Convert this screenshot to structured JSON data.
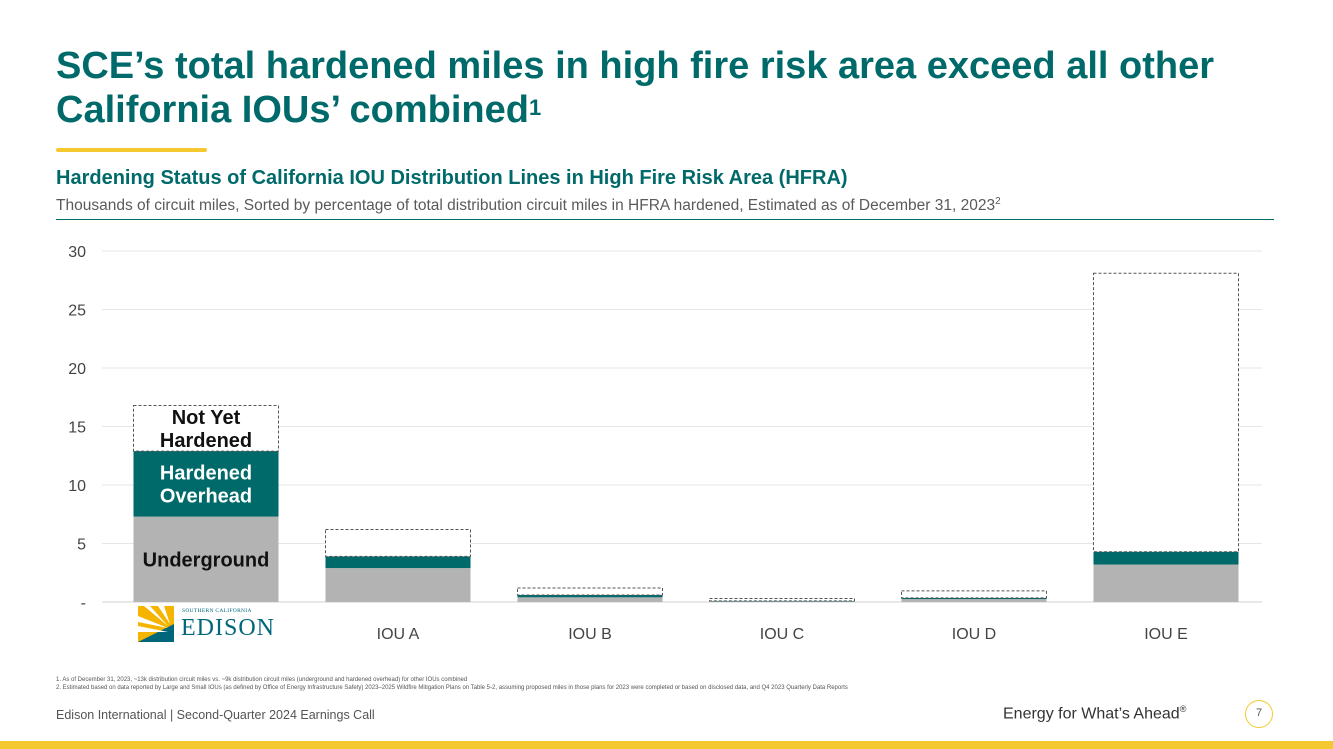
{
  "slide": {
    "title_main": "SCE’s total hardened miles in high fire risk area exceed all other California IOUs’ combined",
    "title_sup": "1",
    "chart_title": "Hardening Status of California IOU Distribution Lines in High Fire Risk Area (HFRA)",
    "chart_subtitle": "Thousands of circuit miles, Sorted by percentage of total distribution circuit miles in HFRA hardened, Estimated as of December 31, 2023",
    "chart_subtitle_sup": "2",
    "footnote_1": "1.  As of December 31, 2023, ~13k distribution circuit miles vs. ~9k distribution circuit miles (underground and hardened overhead) for other IOUs combined",
    "footnote_2": "2.  Estimated based on data reported by Large and Small IOUs (as defined by Office of Energy Infrastructure Safety) 2023–2025 Wildfire Mitigation Plans on Table 5-2, assuming proposed miles in those plans for 2023 were completed or based on disclosed data, and Q4 2023 Quarterly Data Reports",
    "footer_left": "Edison International |  Second-Quarter 2024 Earnings Call",
    "tagline": "Energy for What’s Ahead",
    "tagline_sup": "®",
    "page_number": "7",
    "logo": {
      "small_text": "SOUTHERN CALIFORNIA",
      "big_text": "EDISON",
      "icon": "sun-logo-icon"
    }
  },
  "chart_data": {
    "type": "bar",
    "stacked": true,
    "categories": [
      "",
      "IOU A",
      "IOU B",
      "IOU C",
      "IOU D",
      "IOU E"
    ],
    "series": [
      {
        "name": "Underground",
        "color": "#b3b3b3",
        "values": [
          7.3,
          2.9,
          0.4,
          0.05,
          0.25,
          3.2
        ]
      },
      {
        "name": "Hardened Overhead",
        "color": "#006a6a",
        "values": [
          5.6,
          1.0,
          0.2,
          0.05,
          0.1,
          1.1
        ]
      },
      {
        "name": "Not Yet Hardened",
        "color": "#ffffff",
        "border": "dashed",
        "values": [
          3.9,
          2.3,
          0.6,
          0.2,
          0.6,
          23.8
        ]
      }
    ],
    "yticks": [
      0,
      5,
      10,
      15,
      20,
      25,
      30
    ],
    "ytick_labels": [
      "-",
      "5",
      "10",
      "15",
      "20",
      "25",
      "30"
    ],
    "ylim": [
      0,
      30
    ],
    "grid": true,
    "segment_labels": {
      "Underground": "Underground",
      "Hardened Overhead": "Hardened Overhead",
      "Not Yet Hardened": "Not Yet Hardened"
    }
  }
}
